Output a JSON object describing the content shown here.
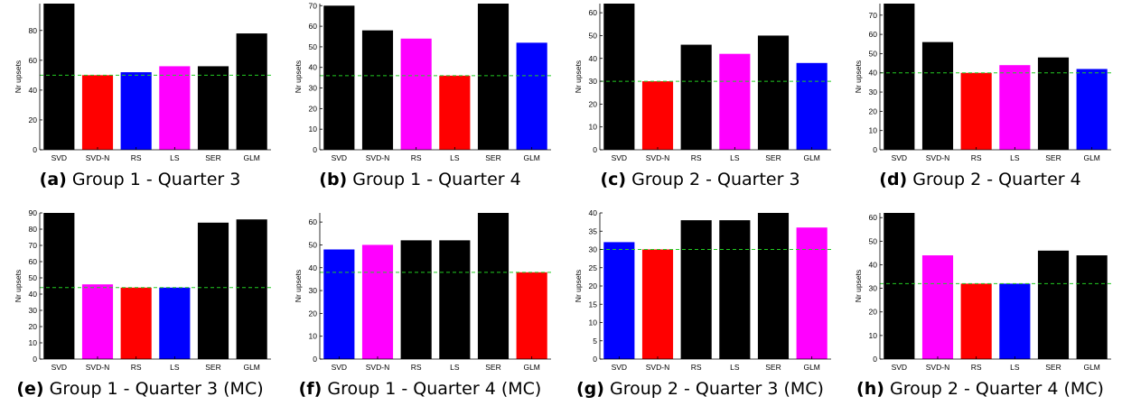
{
  "chart_data": [
    {
      "type": "bar",
      "label": "(a)",
      "title": "Group 1 - Quarter 3",
      "ylabel": "Nr upsets",
      "categories": [
        "SVD",
        "SVD-N",
        "RS",
        "LS",
        "SER",
        "GLM"
      ],
      "values": [
        100,
        50,
        52,
        56,
        56,
        78
      ],
      "colors": [
        "#000000",
        "#ff0000",
        "#0000ff",
        "#ff00ff",
        "#000000",
        "#000000"
      ],
      "ylim": [
        0,
        98
      ],
      "yticks": [
        0,
        20,
        40,
        60,
        80
      ],
      "reference": 50
    },
    {
      "type": "bar",
      "label": "(b)",
      "title": "Group 1 - Quarter 4",
      "ylabel": "Nr upsets",
      "categories": [
        "SVD",
        "SVD-N",
        "RS",
        "LS",
        "SER",
        "GLM"
      ],
      "values": [
        70,
        58,
        54,
        36,
        72,
        52
      ],
      "colors": [
        "#000000",
        "#000000",
        "#ff00ff",
        "#ff0000",
        "#000000",
        "#0000ff"
      ],
      "ylim": [
        0,
        71
      ],
      "yticks": [
        0,
        10,
        20,
        30,
        40,
        50,
        60,
        70
      ],
      "reference": 36
    },
    {
      "type": "bar",
      "label": "(c)",
      "title": "Group 2 - Quarter 3",
      "ylabel": "Nr upsets",
      "categories": [
        "SVD",
        "SVD-N",
        "RS",
        "LS",
        "SER",
        "GLM"
      ],
      "values": [
        64,
        30,
        46,
        42,
        50,
        38
      ],
      "colors": [
        "#000000",
        "#ff0000",
        "#000000",
        "#ff00ff",
        "#000000",
        "#0000ff"
      ],
      "ylim": [
        0,
        64
      ],
      "yticks": [
        0,
        10,
        20,
        30,
        40,
        50,
        60
      ],
      "reference": 30
    },
    {
      "type": "bar",
      "label": "(d)",
      "title": "Group 2 - Quarter 4",
      "ylabel": "Nr upsets",
      "categories": [
        "SVD",
        "SVD-N",
        "RS",
        "LS",
        "SER",
        "GLM"
      ],
      "values": [
        76,
        56,
        40,
        44,
        48,
        42
      ],
      "colors": [
        "#000000",
        "#000000",
        "#ff0000",
        "#ff00ff",
        "#000000",
        "#0000ff"
      ],
      "ylim": [
        0,
        76
      ],
      "yticks": [
        0,
        10,
        20,
        30,
        40,
        50,
        60,
        70
      ],
      "reference": 40
    },
    {
      "type": "bar",
      "label": "(e)",
      "title": "Group 1 - Quarter 3 (MC)",
      "ylabel": "Nr upsets",
      "categories": [
        "SVD",
        "SVD-N",
        "RS",
        "LS",
        "SER",
        "GLM"
      ],
      "values": [
        90,
        46,
        44,
        44,
        84,
        86
      ],
      "colors": [
        "#000000",
        "#ff00ff",
        "#ff0000",
        "#0000ff",
        "#000000",
        "#000000"
      ],
      "ylim": [
        0,
        90
      ],
      "yticks": [
        0,
        10,
        20,
        30,
        40,
        50,
        60,
        70,
        80,
        90
      ],
      "reference": 44
    },
    {
      "type": "bar",
      "label": "(f)",
      "title": "Group 1 - Quarter 4 (MC)",
      "ylabel": "Nr upsets",
      "categories": [
        "SVD",
        "SVD-N",
        "RS",
        "LS",
        "SER",
        "GLM"
      ],
      "values": [
        48,
        50,
        52,
        52,
        64,
        38
      ],
      "colors": [
        "#0000ff",
        "#ff00ff",
        "#000000",
        "#000000",
        "#000000",
        "#ff0000"
      ],
      "ylim": [
        0,
        64
      ],
      "yticks": [
        0,
        10,
        20,
        30,
        40,
        50,
        60
      ],
      "reference": 38
    },
    {
      "type": "bar",
      "label": "(g)",
      "title": "Group 2 - Quarter 3 (MC)",
      "ylabel": "Nr upsets",
      "categories": [
        "SVD",
        "SVD-N",
        "RS",
        "LS",
        "SER",
        "GLM"
      ],
      "values": [
        32,
        30,
        38,
        38,
        40,
        36
      ],
      "colors": [
        "#0000ff",
        "#ff0000",
        "#000000",
        "#000000",
        "#000000",
        "#ff00ff"
      ],
      "ylim": [
        0,
        40
      ],
      "yticks": [
        0,
        5,
        10,
        15,
        20,
        25,
        30,
        35,
        40
      ],
      "reference": 30
    },
    {
      "type": "bar",
      "label": "(h)",
      "title": "Group 2 - Quarter 4 (MC)",
      "ylabel": "Nr upsets",
      "categories": [
        "SVD",
        "SVD-N",
        "RS",
        "LS",
        "SER",
        "GLM"
      ],
      "values": [
        62,
        44,
        32,
        32,
        46,
        44
      ],
      "colors": [
        "#000000",
        "#ff00ff",
        "#ff0000",
        "#0000ff",
        "#000000",
        "#000000"
      ],
      "ylim": [
        0,
        62
      ],
      "yticks": [
        0,
        10,
        20,
        30,
        40,
        50,
        60
      ],
      "reference": 32
    }
  ],
  "colors": {
    "reference_line": "#22cc22",
    "axis": "#000000"
  }
}
